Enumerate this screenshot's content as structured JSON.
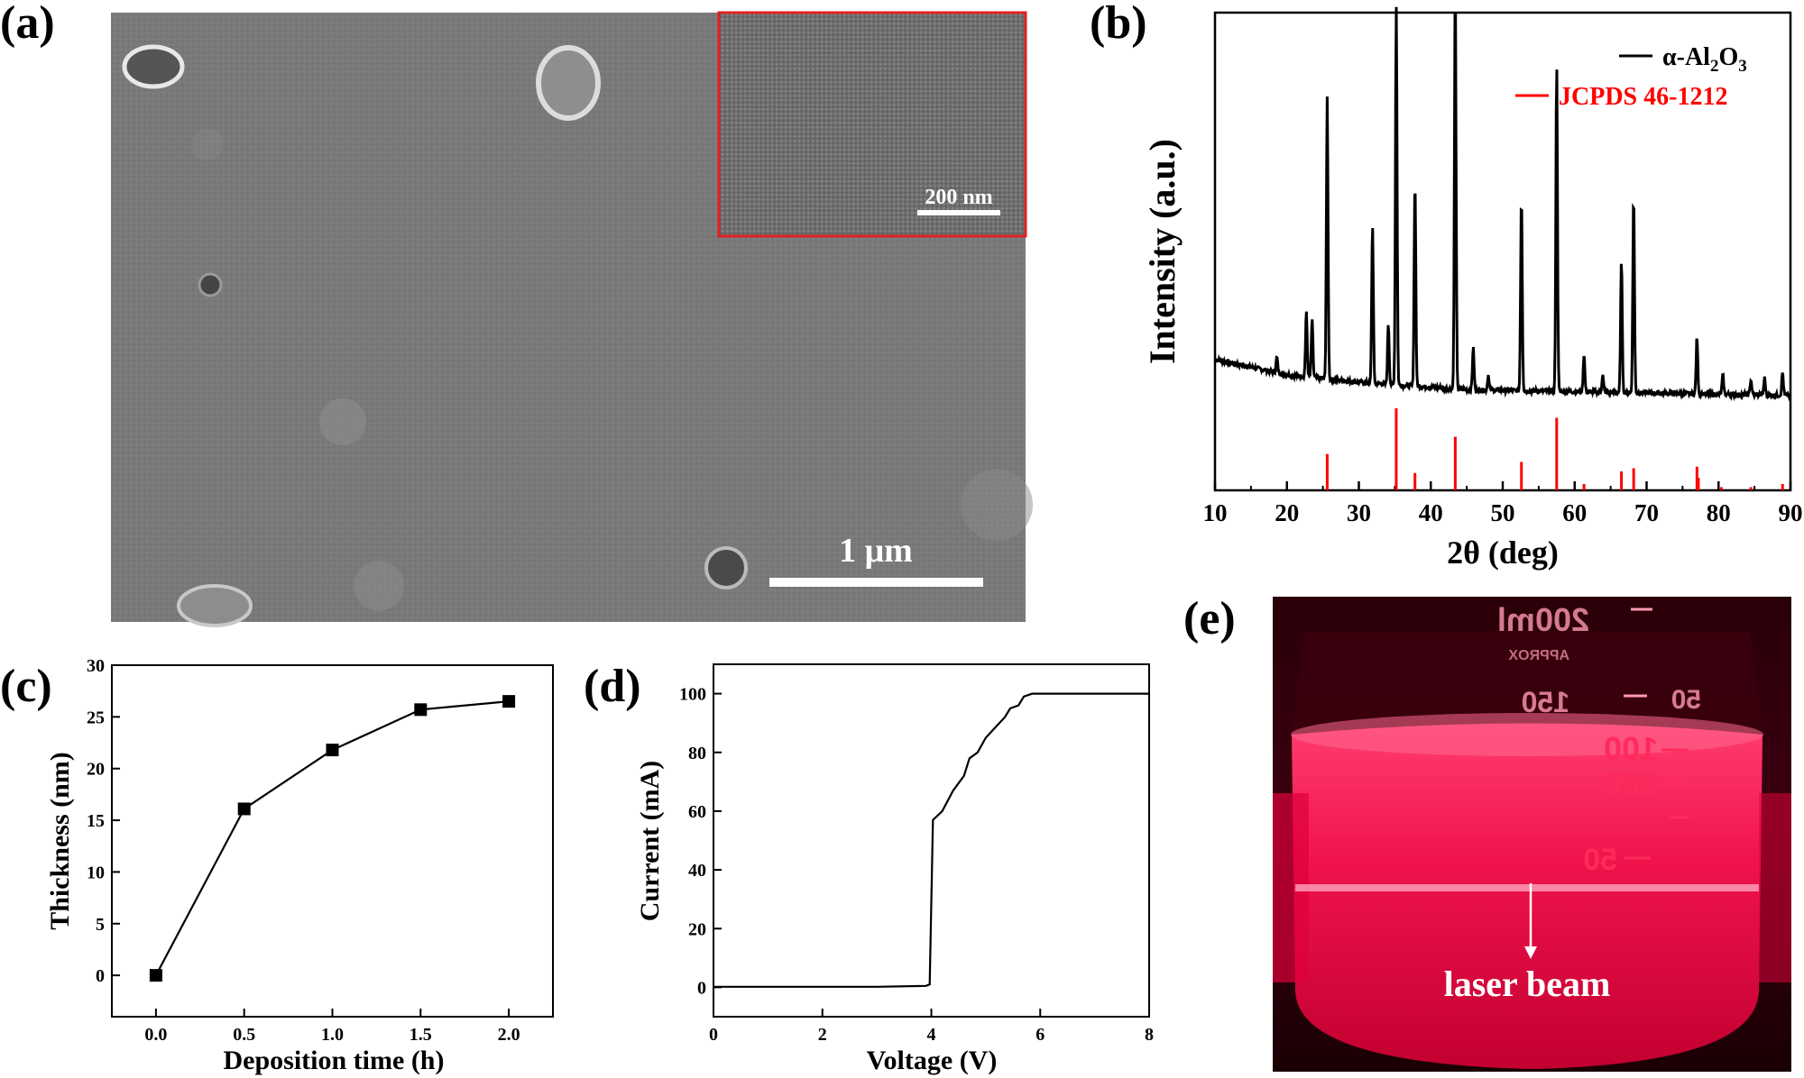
{
  "panels": {
    "a": {
      "letter": "(a)",
      "scale_bar": "1 μm",
      "inset_scale_bar": "200 nm"
    },
    "b": {
      "letter": "(b)",
      "legend_series": "α-Al",
      "legend_sub1": "2",
      "legend_o": "O",
      "legend_sub2": "3",
      "legend_ref": "JCPDS 46-1212",
      "xlabel": "2θ (deg)",
      "ylabel": "Intensity (a.u.)"
    },
    "c": {
      "letter": "(c)",
      "xlabel": "Deposition time (h)",
      "ylabel": "Thickness (nm)"
    },
    "d": {
      "letter": "(d)",
      "xlabel": "Voltage (V)",
      "ylabel": "Current (mA)"
    },
    "e": {
      "letter": "(e)",
      "label": "laser beam",
      "beaker_marks": [
        "200ml",
        "APPROX",
        "150",
        "50",
        "100",
        "100",
        "50"
      ]
    }
  },
  "chart_data": [
    {
      "panel": "b",
      "type": "line",
      "xlabel": "2θ (deg)",
      "ylabel": "Intensity (a.u.)",
      "xlim": [
        10,
        90
      ],
      "xticks": [
        10,
        20,
        30,
        40,
        50,
        60,
        70,
        80,
        90
      ],
      "series": [
        {
          "name": "α-Al2O3",
          "color": "#000000",
          "baseline": [
            [
              10,
              32
            ],
            [
              15,
              28
            ],
            [
              20,
              24
            ],
            [
              30,
              20
            ],
            [
              45,
              16
            ],
            [
              60,
              15
            ],
            [
              75,
              14
            ],
            [
              90,
              13
            ]
          ],
          "peaks": [
            [
              18.6,
              8
            ],
            [
              22.7,
              34
            ],
            [
              23.5,
              30
            ],
            [
              25.6,
              148
            ],
            [
              31.9,
              84
            ],
            [
              34.1,
              32
            ],
            [
              35.2,
              200
            ],
            [
              37.8,
              108
            ],
            [
              43.4,
              210
            ],
            [
              45.9,
              22
            ],
            [
              48.0,
              8
            ],
            [
              52.6,
              102
            ],
            [
              57.5,
              172
            ],
            [
              61.3,
              20
            ],
            [
              63.9,
              9
            ],
            [
              66.5,
              70
            ],
            [
              68.2,
              104
            ],
            [
              77.0,
              30
            ],
            [
              80.6,
              10
            ],
            [
              84.5,
              8
            ],
            [
              86.4,
              9
            ],
            [
              88.9,
              12
            ]
          ]
        },
        {
          "name": "JCPDS 46-1212",
          "color": "#ff0000",
          "type": "stick",
          "sticks": [
            [
              25.6,
              23
            ],
            [
              35.2,
              52
            ],
            [
              37.8,
              11
            ],
            [
              43.4,
              34
            ],
            [
              52.6,
              18
            ],
            [
              57.5,
              46
            ],
            [
              61.3,
              4
            ],
            [
              66.5,
              12
            ],
            [
              68.2,
              14
            ],
            [
              77.0,
              15
            ],
            [
              77.2,
              8
            ],
            [
              80.4,
              2
            ],
            [
              84.5,
              2
            ],
            [
              88.9,
              4
            ]
          ]
        }
      ]
    },
    {
      "panel": "c",
      "type": "line",
      "xlabel": "Deposition time (h)",
      "ylabel": "Thickness (nm)",
      "xlim": [
        -0.25,
        2.25
      ],
      "ylim": [
        -4,
        30
      ],
      "xticks": [
        0.0,
        0.5,
        1.0,
        1.5,
        2.0
      ],
      "yticks": [
        0,
        5,
        10,
        15,
        20,
        25,
        30
      ],
      "x": [
        0.0,
        0.5,
        1.0,
        1.5,
        2.0
      ],
      "series": [
        {
          "values": [
            0.0,
            16.1,
            21.8,
            25.7,
            26.5
          ],
          "color": "#000000",
          "marker": "square"
        }
      ]
    },
    {
      "panel": "d",
      "type": "line",
      "xlabel": "Voltage (V)",
      "ylabel": "Current (mA)",
      "xlim": [
        0,
        8
      ],
      "ylim": [
        -10,
        110
      ],
      "xticks": [
        0,
        2,
        4,
        6,
        8
      ],
      "yticks": [
        0,
        20,
        40,
        60,
        80,
        100
      ],
      "series": [
        {
          "color": "#000000",
          "points": [
            [
              0,
              0.2
            ],
            [
              3.0,
              0.2
            ],
            [
              3.9,
              0.5
            ],
            [
              3.97,
              1
            ],
            [
              4.03,
              57
            ],
            [
              4.2,
              60
            ],
            [
              4.4,
              67
            ],
            [
              4.6,
              72
            ],
            [
              4.7,
              78
            ],
            [
              4.85,
              80
            ],
            [
              5.0,
              85
            ],
            [
              5.2,
              89
            ],
            [
              5.35,
              92
            ],
            [
              5.45,
              95
            ],
            [
              5.6,
              96
            ],
            [
              5.7,
              99
            ],
            [
              5.85,
              100
            ],
            [
              8.0,
              100
            ]
          ]
        }
      ]
    }
  ]
}
